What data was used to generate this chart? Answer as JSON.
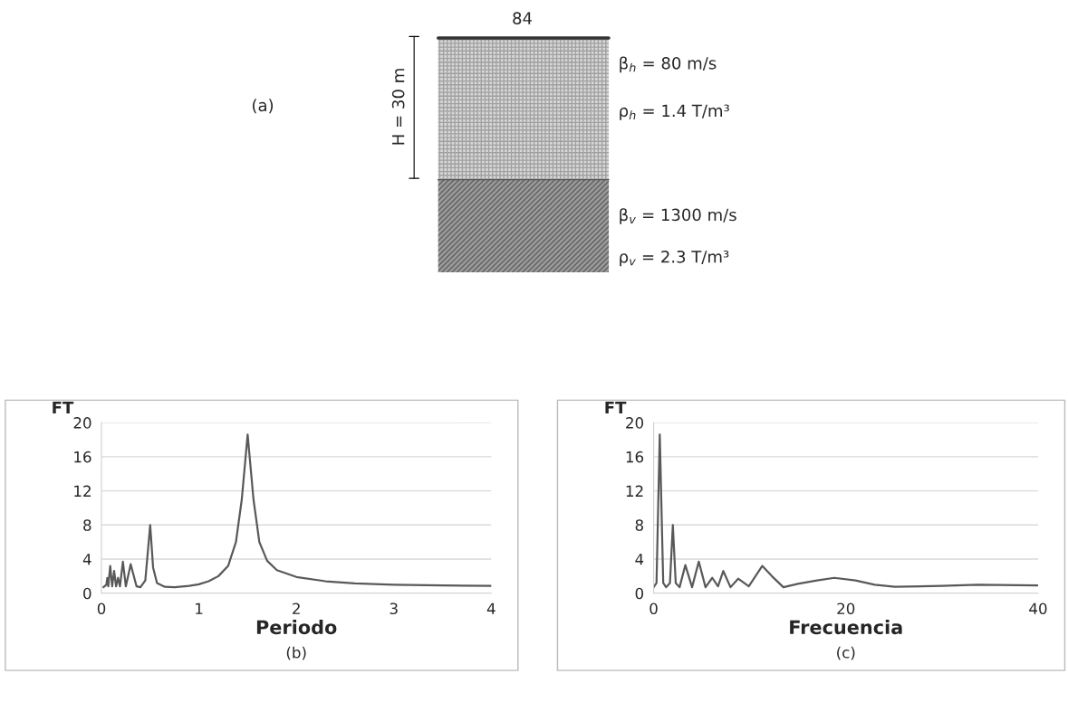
{
  "chart_data": [
    {
      "type": "other",
      "annotations": [
        "84",
        "(a)",
        "H = 30 m",
        "β$_{h}$ = 80 m/s",
        "ρ$_{h}$ = 1.4 T/m³",
        "β$_{v}$ = 1300 m/s",
        "ρ$_{v}$ = 2.3 T/m³"
      ]
    },
    {
      "type": "line",
      "xlabel": "Periodo",
      "ylabel": "FT",
      "annotations": [
        "(b)"
      ],
      "xlim": [
        0,
        4
      ],
      "ylim": [
        0,
        20
      ],
      "xticks": [
        0,
        1,
        2,
        3,
        4
      ],
      "yticks": [
        0,
        4,
        8,
        12,
        16,
        20
      ],
      "grid": "y",
      "series": [
        {
          "color": "#595959",
          "x": [
            0.02,
            0.05,
            0.06,
            0.07,
            0.09,
            0.11,
            0.13,
            0.15,
            0.17,
            0.19,
            0.22,
            0.25,
            0.3,
            0.36,
            0.4,
            0.45,
            0.5,
            0.53,
            0.57,
            0.65,
            0.75,
            0.9,
            1.0,
            1.1,
            1.2,
            1.3,
            1.38,
            1.44,
            1.5,
            1.56,
            1.62,
            1.7,
            1.8,
            2.0,
            2.3,
            2.6,
            3.0,
            3.5,
            4.0
          ],
          "values": [
            0.7,
            1.0,
            1.8,
            0.8,
            3.2,
            0.8,
            2.6,
            0.8,
            1.8,
            0.8,
            3.7,
            0.8,
            3.4,
            0.8,
            0.7,
            1.5,
            8.0,
            3.0,
            1.2,
            0.75,
            0.7,
            0.85,
            1.05,
            1.4,
            2.0,
            3.2,
            6.0,
            11.0,
            18.6,
            11.0,
            6.0,
            3.8,
            2.7,
            1.9,
            1.4,
            1.15,
            1.0,
            0.9,
            0.85
          ]
        }
      ]
    },
    {
      "type": "line",
      "xlabel": "Frecuencia",
      "ylabel": "FT",
      "annotations": [
        "(c)"
      ],
      "xlim": [
        0,
        40
      ],
      "ylim": [
        0,
        20
      ],
      "xticks": [
        0,
        20,
        40
      ],
      "yticks": [
        0,
        4,
        8,
        12,
        16,
        20
      ],
      "grid": "y",
      "series": [
        {
          "color": "#595959",
          "x": [
            0,
            0.3,
            0.64,
            1.0,
            1.3,
            1.7,
            2.0,
            2.3,
            2.7,
            3.3,
            4.0,
            4.7,
            5.4,
            6.1,
            6.7,
            7.25,
            8.0,
            8.8,
            9.9,
            11.3,
            12.3,
            13.5,
            15,
            17,
            18.8,
            21,
            23,
            25.1,
            30,
            33.7,
            40
          ],
          "values": [
            0.7,
            1.2,
            18.6,
            1.2,
            0.7,
            1.2,
            8.0,
            1.2,
            0.7,
            3.3,
            0.7,
            3.7,
            0.7,
            1.8,
            0.8,
            2.6,
            0.7,
            1.7,
            0.8,
            3.2,
            2.0,
            0.7,
            1.1,
            1.5,
            1.8,
            1.5,
            1.0,
            0.75,
            0.85,
            1.0,
            0.9
          ]
        }
      ]
    }
  ]
}
